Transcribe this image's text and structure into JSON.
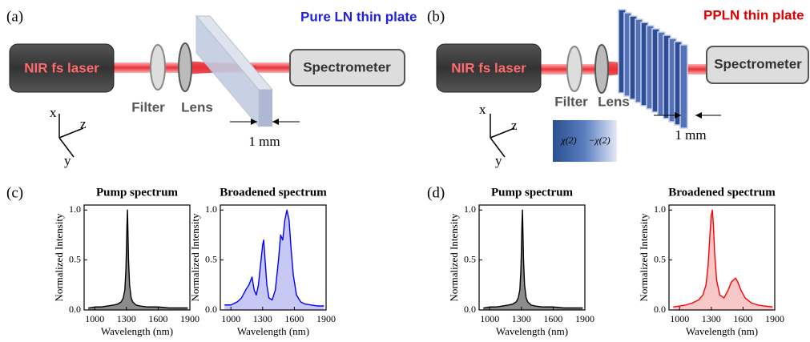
{
  "panel_a": {
    "label": "(a)",
    "laser": "NIR fs laser",
    "filter": "Filter",
    "lens": "Lens",
    "plate": "Pure LN thin plate",
    "spectrometer": "Spectrometer",
    "thickness": "1 mm",
    "axes": {
      "x": "x",
      "y": "y",
      "z": "z"
    }
  },
  "panel_b": {
    "label": "(b)",
    "laser": "NIR fs laser",
    "filter": "Filter",
    "lens": "Lens",
    "plate": "PPLN thin plate",
    "spectrometer": "Spectrometer",
    "thickness": "1 mm",
    "axes": {
      "x": "x",
      "y": "y",
      "z": "z"
    },
    "chi_pos": "χ(2)",
    "chi_neg": "−χ(2)"
  },
  "panel_c": {
    "label": "(c)"
  },
  "panel_d": {
    "label": "(d)"
  },
  "chart_data": [
    {
      "type": "line",
      "title": "Pump spectrum",
      "x_label": "Wavelength (nm)",
      "y_label": "Normalized Intensity",
      "color": "#000000",
      "fill_color": "#8c8c8c",
      "x": [
        940,
        1000,
        1060,
        1120,
        1180,
        1220,
        1250,
        1270,
        1285,
        1295,
        1300,
        1305,
        1310,
        1315,
        1320,
        1330,
        1345,
        1360,
        1390,
        1430,
        1500,
        1600,
        1700,
        1800,
        1880
      ],
      "values": [
        0.02,
        0.03,
        0.03,
        0.04,
        0.05,
        0.06,
        0.08,
        0.12,
        0.2,
        0.4,
        0.6,
        0.85,
        1.0,
        0.75,
        0.5,
        0.25,
        0.12,
        0.08,
        0.05,
        0.04,
        0.03,
        0.03,
        0.02,
        0.02,
        0.02
      ],
      "xlim": [
        900,
        1900
      ],
      "xticks": [
        1000,
        1300,
        1600,
        1900
      ],
      "ylim": [
        0,
        1.05
      ],
      "yticks": [
        {
          "value": 0,
          "label": "0.0"
        },
        0.5,
        {
          "value": 1,
          "label": "1.0"
        }
      ]
    },
    {
      "type": "line",
      "title": "Broadened spectrum",
      "x_label": "Wavelength (nm)",
      "y_label": "Normalized Intensity",
      "color": "#0000ff",
      "fill_color": "#c8c8f5",
      "x": [
        940,
        1000,
        1060,
        1100,
        1140,
        1170,
        1200,
        1220,
        1240,
        1260,
        1280,
        1300,
        1310,
        1320,
        1340,
        1360,
        1390,
        1420,
        1450,
        1470,
        1490,
        1510,
        1530,
        1550,
        1570,
        1590,
        1620,
        1660,
        1700,
        1760,
        1820,
        1880
      ],
      "values": [
        0.05,
        0.05,
        0.08,
        0.12,
        0.2,
        0.25,
        0.33,
        0.2,
        0.15,
        0.25,
        0.45,
        0.65,
        0.7,
        0.55,
        0.25,
        0.12,
        0.1,
        0.2,
        0.5,
        0.75,
        0.7,
        0.9,
        1.0,
        0.9,
        0.6,
        0.35,
        0.15,
        0.08,
        0.06,
        0.05,
        0.04,
        0.04
      ],
      "xlim": [
        900,
        1900
      ],
      "xticks": [
        1000,
        1300,
        1600,
        1900
      ],
      "ylim": [
        0,
        1.05
      ],
      "yticks": [
        {
          "value": 0,
          "label": "0.0"
        },
        0.5,
        {
          "value": 1,
          "label": "1.0"
        }
      ]
    },
    {
      "type": "line",
      "title": "Pump spectrum",
      "x_label": "Wavelength (nm)",
      "y_label": "Normalized Intensity",
      "color": "#000000",
      "fill_color": "#8c8c8c",
      "x": [
        940,
        1000,
        1060,
        1120,
        1180,
        1220,
        1250,
        1270,
        1285,
        1295,
        1300,
        1305,
        1310,
        1315,
        1320,
        1330,
        1345,
        1360,
        1390,
        1430,
        1500,
        1600,
        1700,
        1800,
        1880
      ],
      "values": [
        0.02,
        0.03,
        0.03,
        0.04,
        0.05,
        0.06,
        0.08,
        0.12,
        0.2,
        0.4,
        0.6,
        0.85,
        1.0,
        0.75,
        0.5,
        0.25,
        0.12,
        0.08,
        0.05,
        0.04,
        0.03,
        0.03,
        0.02,
        0.02,
        0.02
      ],
      "xlim": [
        900,
        1900
      ],
      "xticks": [
        1000,
        1300,
        1600,
        1900
      ],
      "ylim": [
        0,
        1.05
      ],
      "yticks": [
        {
          "value": 0,
          "label": "0.0"
        },
        0.5,
        {
          "value": 1,
          "label": "1.0"
        }
      ]
    },
    {
      "type": "line",
      "title": "Broadened spectrum",
      "x_label": "Wavelength (nm)",
      "y_label": "Normalized Intensity",
      "color": "#ff0000",
      "fill_color": "#f8c8c8",
      "x": [
        940,
        1000,
        1060,
        1120,
        1180,
        1220,
        1250,
        1270,
        1290,
        1300,
        1310,
        1320,
        1330,
        1350,
        1380,
        1420,
        1460,
        1490,
        1510,
        1530,
        1550,
        1580,
        1620,
        1680,
        1740,
        1800,
        1880
      ],
      "values": [
        0.03,
        0.04,
        0.05,
        0.07,
        0.1,
        0.15,
        0.25,
        0.45,
        0.8,
        0.95,
        1.0,
        0.85,
        0.6,
        0.3,
        0.15,
        0.12,
        0.2,
        0.28,
        0.3,
        0.32,
        0.28,
        0.2,
        0.12,
        0.07,
        0.05,
        0.04,
        0.03
      ],
      "xlim": [
        900,
        1900
      ],
      "xticks": [
        1000,
        1300,
        1600,
        1900
      ],
      "ylim": [
        0,
        1.05
      ],
      "yticks": [
        {
          "value": 0,
          "label": "0.0"
        },
        0.5,
        {
          "value": 1,
          "label": "1.0"
        }
      ]
    }
  ]
}
